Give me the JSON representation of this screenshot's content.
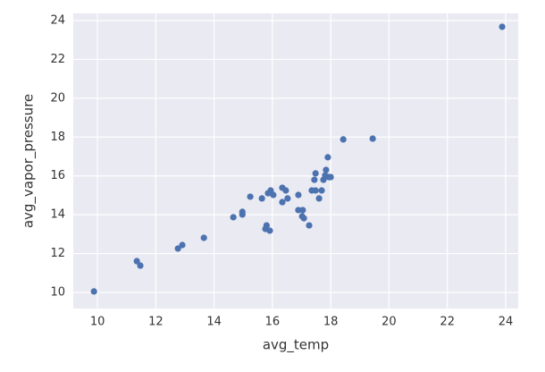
{
  "chart_data": {
    "type": "scatter",
    "x_label": "avg_temp",
    "y_label": "avg_vapor_pressure",
    "x": [
      9.88,
      11.35,
      11.47,
      12.76,
      12.91,
      13.65,
      14.66,
      14.97,
      14.97,
      15.24,
      15.64,
      15.8,
      15.76,
      15.91,
      15.85,
      15.94,
      16.03,
      16.34,
      16.34,
      16.46,
      16.52,
      16.89,
      16.89,
      17.04,
      17.02,
      17.08,
      17.26,
      17.35,
      17.44,
      17.48,
      17.48,
      17.6,
      17.69,
      17.75,
      17.81,
      17.84,
      17.94,
      17.9,
      18.0,
      18.43,
      19.44,
      23.88
    ],
    "values": [
      10.05,
      11.61,
      11.38,
      12.26,
      12.44,
      12.81,
      13.87,
      14.01,
      14.15,
      14.93,
      14.84,
      13.45,
      13.27,
      13.18,
      15.11,
      15.25,
      15.02,
      15.39,
      14.65,
      15.25,
      14.84,
      15.02,
      14.24,
      14.24,
      13.92,
      13.82,
      13.45,
      15.25,
      15.8,
      16.13,
      15.25,
      14.84,
      15.25,
      15.8,
      16.03,
      16.31,
      15.94,
      16.96,
      15.94,
      17.88,
      17.92,
      23.68
    ],
    "color": "#4c72b0",
    "xlim": [
      9.17,
      24.43
    ],
    "xticks": [
      10,
      12,
      14,
      16,
      18,
      20,
      22,
      24
    ],
    "ylim": [
      9.17,
      24.37
    ],
    "yticks": [
      10,
      12,
      14,
      16,
      18,
      20,
      22,
      24
    ],
    "grid": true
  }
}
